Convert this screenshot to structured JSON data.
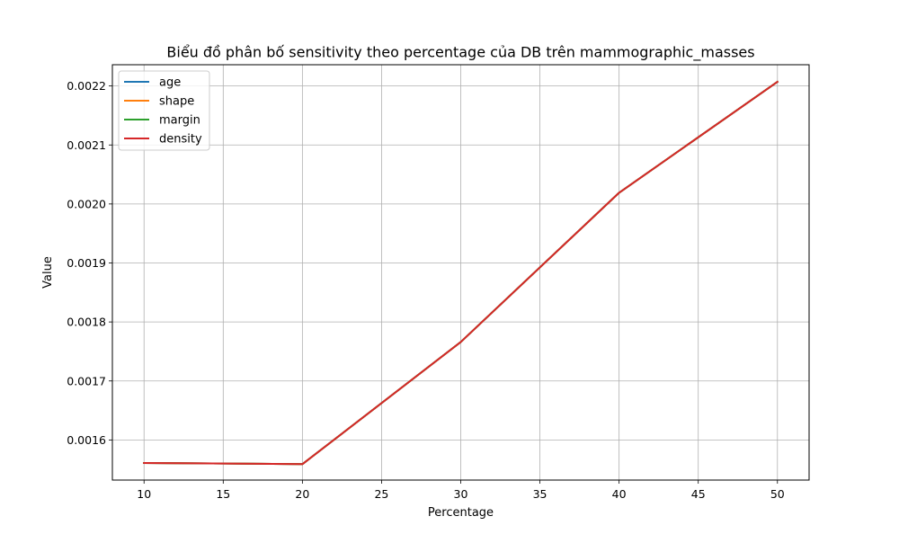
{
  "chart_data": {
    "type": "line",
    "title": "Biểu đồ phân bố sensitivity theo percentage của DB trên mammographic_masses",
    "xlabel": "Percentage",
    "ylabel": "Value",
    "x": [
      10,
      20,
      30,
      40,
      50
    ],
    "xlim": [
      8,
      52
    ],
    "ylim": [
      0.001532,
      0.002236
    ],
    "xticks": [
      "10",
      "15",
      "20",
      "25",
      "30",
      "35",
      "40",
      "45",
      "50"
    ],
    "yticks": [
      "0.0016",
      "0.0017",
      "0.0018",
      "0.0019",
      "0.0020",
      "0.0021",
      "0.0022"
    ],
    "grid": true,
    "legend_position": "top-left",
    "series": [
      {
        "name": "age",
        "color": "#1f77b4",
        "values": [
          0.001561,
          0.001559,
          0.001766,
          0.002019,
          0.002207
        ]
      },
      {
        "name": "shape",
        "color": "#ff7f0e",
        "values": [
          0.001561,
          0.001559,
          0.001766,
          0.002019,
          0.002207
        ]
      },
      {
        "name": "margin",
        "color": "#2ca02c",
        "values": [
          0.001561,
          0.001559,
          0.001766,
          0.002019,
          0.002207
        ]
      },
      {
        "name": "density",
        "color": "#d62728",
        "values": [
          0.001561,
          0.001559,
          0.001766,
          0.002019,
          0.002207
        ]
      }
    ]
  }
}
